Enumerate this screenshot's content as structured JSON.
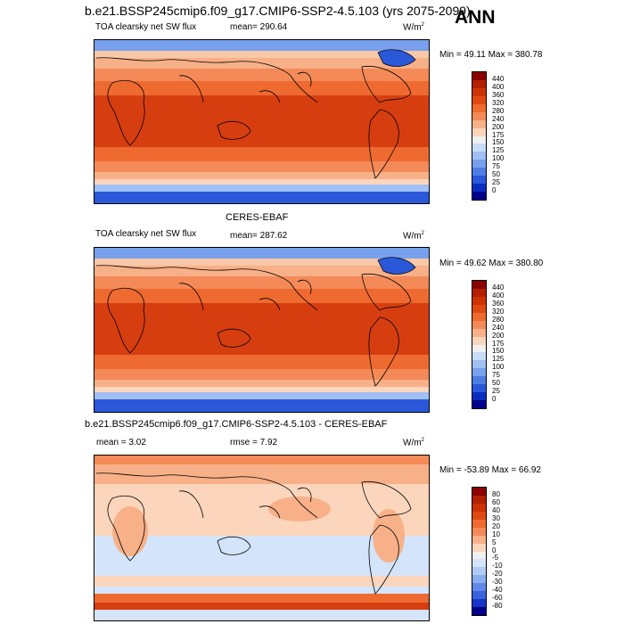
{
  "header": {
    "case_title": "b.e21.BSSP245cmip6.f09_g17.CMIP6-SSP2-4.5.103 (yrs 2075-2099)",
    "season": "ANN"
  },
  "panels": [
    {
      "title": "",
      "variable": "TOA clearsky net SW flux",
      "mean_label": "mean= 290.64",
      "units": "W/m",
      "units_sup": "2",
      "min_max": "Min =  49.11 Max = 380.78"
    },
    {
      "title": "CERES-EBAF",
      "variable": "TOA clearsky net SW flux",
      "mean_label": "mean= 287.62",
      "units": "W/m",
      "units_sup": "2",
      "min_max": "Min =  49.62 Max = 380.80"
    },
    {
      "title": "b.e21.BSSP245cmip6.f09_g17.CMIP6-SSP2-4.5.103 - CERES-EBAF",
      "mean_label": "mean =   3.02",
      "rmse_label": "rmse =   7.92",
      "units": "W/m",
      "units_sup": "2",
      "min_max": "Min = -53.89 Max =  66.92"
    }
  ],
  "colorbars": {
    "absolute": {
      "labels": [
        "440",
        "400",
        "360",
        "320",
        "280",
        "240",
        "200",
        "175",
        "150",
        "125",
        "100",
        "75",
        "50",
        "25",
        "0"
      ],
      "colors": [
        "#8b0000",
        "#b22000",
        "#cc3300",
        "#e04a10",
        "#ee6a30",
        "#f48a58",
        "#f8b088",
        "#fcd6bc",
        "#f0f0f0",
        "#c8dcf8",
        "#a0c0f4",
        "#78a0ec",
        "#4e7ee4",
        "#2a58d8",
        "#0a2cc0",
        "#00008b"
      ]
    },
    "difference": {
      "labels": [
        "80",
        "60",
        "40",
        "30",
        "20",
        "10",
        "5",
        "0",
        "-5",
        "-10",
        "-20",
        "-30",
        "-40",
        "-60",
        "-80"
      ],
      "colors": [
        "#8b0000",
        "#b22000",
        "#cc3300",
        "#e04a10",
        "#ee6a30",
        "#f48a58",
        "#f8b088",
        "#fcd6bc",
        "#f0f0f0",
        "#d4e4fa",
        "#b0ccf6",
        "#8aaef0",
        "#6088e8",
        "#3a62dc",
        "#1536c8",
        "#00008b"
      ]
    }
  }
}
